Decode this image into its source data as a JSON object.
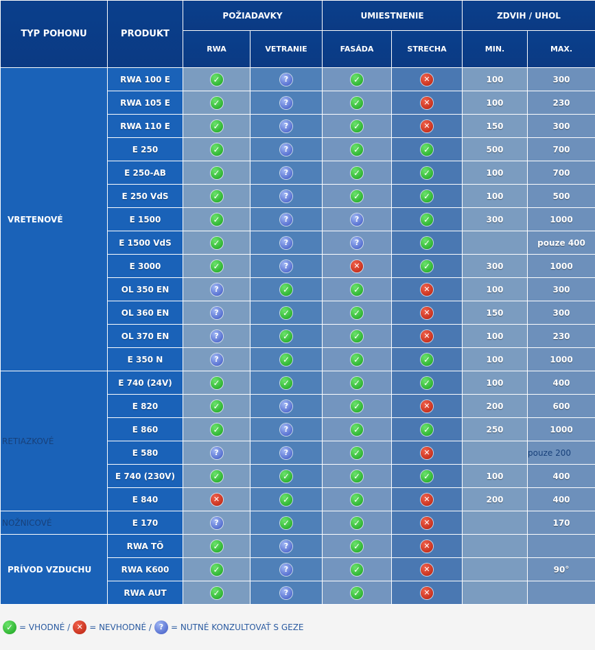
{
  "header": {
    "type": "TYP POHONU",
    "product": "PRODUKT",
    "requirements": "POŽIADAVKY",
    "placement": "UMIESTNENIE",
    "lift": "ZDVIH / UHOL",
    "rwa": "RWA",
    "ventilation": "VETRANIE",
    "facade": "FASÁDA",
    "roof": "STRECHA",
    "min": "MIN.",
    "max": "MAX."
  },
  "groups": [
    {
      "label": "VRETENOVÉ",
      "style": "bold",
      "rows": 13
    },
    {
      "label": "RETIAZKOVÉ",
      "style": "plain",
      "rows": 6
    },
    {
      "label": "NOŽNICOVÉ",
      "style": "plain",
      "rows": 1
    },
    {
      "label": "PRÍVOD VZDUCHU",
      "style": "bold",
      "rows": 3
    }
  ],
  "rows": [
    {
      "product": "RWA 100 E",
      "rwa": "ok",
      "vent": "q",
      "facade": "ok",
      "roof": "no",
      "min": "100",
      "max": "300"
    },
    {
      "product": "RWA 105 E",
      "rwa": "ok",
      "vent": "q",
      "facade": "ok",
      "roof": "no",
      "min": "100",
      "max": "230"
    },
    {
      "product": "RWA 110 E",
      "rwa": "ok",
      "vent": "q",
      "facade": "ok",
      "roof": "no",
      "min": "150",
      "max": "300"
    },
    {
      "product": "E 250",
      "rwa": "ok",
      "vent": "q",
      "facade": "ok",
      "roof": "ok",
      "min": "500",
      "max": "700"
    },
    {
      "product": "E 250-AB",
      "rwa": "ok",
      "vent": "q",
      "facade": "ok",
      "roof": "ok",
      "min": "100",
      "max": "700"
    },
    {
      "product": "E 250 VdS",
      "rwa": "ok",
      "vent": "q",
      "facade": "ok",
      "roof": "ok",
      "min": "100",
      "max": "500"
    },
    {
      "product": "E 1500",
      "rwa": "ok",
      "vent": "q",
      "facade": "q",
      "roof": "ok",
      "min": "300",
      "max": "1000"
    },
    {
      "product": "E 1500 VdS",
      "rwa": "ok",
      "vent": "q",
      "facade": "q",
      "roof": "ok",
      "min": "",
      "max": "pouze 400"
    },
    {
      "product": "E 3000",
      "rwa": "ok",
      "vent": "q",
      "facade": "no",
      "roof": "ok",
      "min": "300",
      "max": "1000"
    },
    {
      "product": "OL 350 EN",
      "rwa": "q",
      "vent": "ok",
      "facade": "ok",
      "roof": "no",
      "min": "100",
      "max": "300"
    },
    {
      "product": "OL 360 EN",
      "rwa": "q",
      "vent": "ok",
      "facade": "ok",
      "roof": "no",
      "min": "150",
      "max": "300"
    },
    {
      "product": "OL 370 EN",
      "rwa": "q",
      "vent": "ok",
      "facade": "ok",
      "roof": "no",
      "min": "100",
      "max": "230"
    },
    {
      "product": "E 350 N",
      "rwa": "q",
      "vent": "ok",
      "facade": "ok",
      "roof": "ok",
      "min": "100",
      "max": "1000"
    },
    {
      "product": "E 740 (24V)",
      "rwa": "ok",
      "vent": "ok",
      "facade": "ok",
      "roof": "ok",
      "min": "100",
      "max": "400"
    },
    {
      "product": "E 820",
      "rwa": "ok",
      "vent": "q",
      "facade": "ok",
      "roof": "no",
      "min": "200",
      "max": "600"
    },
    {
      "product": "E 860",
      "rwa": "ok",
      "vent": "q",
      "facade": "ok",
      "roof": "ok",
      "min": "250",
      "max": "1000"
    },
    {
      "product": "E 580",
      "rwa": "q",
      "vent": "q",
      "facade": "ok",
      "roof": "no",
      "min": "",
      "max": "pouze 200",
      "max_plain": true
    },
    {
      "product": "E 740 (230V)",
      "rwa": "ok",
      "vent": "ok",
      "facade": "ok",
      "roof": "ok",
      "min": "100",
      "max": "400"
    },
    {
      "product": "E 840",
      "rwa": "no",
      "vent": "ok",
      "facade": "ok",
      "roof": "no",
      "min": "200",
      "max": "400"
    },
    {
      "product": "E 170",
      "rwa": "q",
      "vent": "ok",
      "facade": "ok",
      "roof": "no",
      "min": "",
      "max": "170"
    },
    {
      "product": "RWA TÖ",
      "rwa": "ok",
      "vent": "q",
      "facade": "ok",
      "roof": "no",
      "min": "",
      "max": ""
    },
    {
      "product": "RWA K600",
      "rwa": "ok",
      "vent": "q",
      "facade": "ok",
      "roof": "no",
      "min": "",
      "max": "90°"
    },
    {
      "product": "RWA AUT",
      "rwa": "ok",
      "vent": "q",
      "facade": "ok",
      "roof": "no",
      "min": "",
      "max": ""
    }
  ],
  "icons": {
    "ok": "check-icon",
    "no": "cross-icon",
    "q": "question-icon"
  },
  "legend": {
    "ok_text": "= VHODNÉ /",
    "no_text": "= NEVHODNÉ /",
    "q_text": "= NUTNÉ KONZULTOVAŤ S GEZE"
  },
  "colors": {
    "header": "#0b3f8a",
    "product_cell": "#1a62b8",
    "ok": "#18a11c",
    "no": "#c0260f",
    "q": "#4460c8"
  }
}
